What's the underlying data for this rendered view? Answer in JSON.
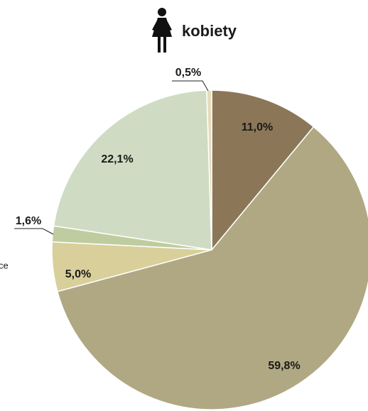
{
  "chart_data": {
    "type": "pie",
    "title": "kobiety",
    "values": [
      11.0,
      59.8,
      5.0,
      1.6,
      22.1,
      0.5
    ],
    "value_labels": [
      "11,0%",
      "59,8%",
      "5,0%",
      "1,6%",
      "22,1%",
      "0,5%"
    ],
    "colors": [
      "#8b7758",
      "#b0a882",
      "#d8cf9a",
      "#bfcc9f",
      "#cfdcc3",
      "#e6dcbb"
    ],
    "annotations": [
      "ce"
    ]
  }
}
